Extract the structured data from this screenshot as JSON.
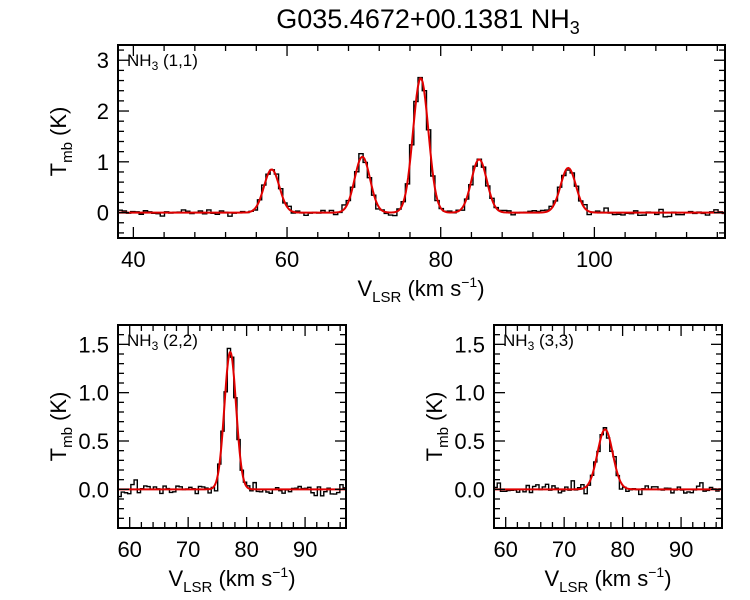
{
  "title": {
    "main": "G035.4672+00.1381 NH",
    "sub": "3"
  },
  "colors": {
    "spectrum": "#000000",
    "fit": "#e00000"
  },
  "chart_data": [
    {
      "type": "line",
      "panel_label": {
        "main": "NH",
        "sub": "3",
        "rest": " (1,1)"
      },
      "xlabel": {
        "main": "V",
        "sub": "LSR",
        "rest": " (km s",
        "sup": "−1",
        "close": ")"
      },
      "ylabel": {
        "main": "T",
        "sub": "mb",
        "rest": " (K)"
      },
      "xlim": [
        38,
        117
      ],
      "ylim": [
        -0.5,
        3.3
      ],
      "xticks": [
        40,
        60,
        80,
        100
      ],
      "yticks": [
        0,
        1,
        2,
        3
      ],
      "components": [
        {
          "center": 58.0,
          "amplitude": 0.85,
          "sigma": 1.0
        },
        {
          "center": 69.8,
          "amplitude": 1.1,
          "sigma": 1.0
        },
        {
          "center": 77.4,
          "amplitude": 2.65,
          "sigma": 1.0
        },
        {
          "center": 85.0,
          "amplitude": 1.05,
          "sigma": 1.0
        },
        {
          "center": 96.6,
          "amplitude": 0.88,
          "sigma": 1.0
        }
      ],
      "noise_rms": 0.05,
      "channel_width": 0.55,
      "series": [
        {
          "name": "spectrum",
          "style": "histogram"
        },
        {
          "name": "fit",
          "style": "smooth"
        }
      ]
    },
    {
      "type": "line",
      "panel_label": {
        "main": "NH",
        "sub": "3",
        "rest": " (2,2)"
      },
      "xlabel": {
        "main": "V",
        "sub": "LSR",
        "rest": " (km s",
        "sup": "−1",
        "close": ")"
      },
      "ylabel": {
        "main": "T",
        "sub": "mb",
        "rest": " (K)"
      },
      "xlim": [
        58,
        97
      ],
      "ylim": [
        -0.4,
        1.7
      ],
      "xticks": [
        60,
        70,
        80,
        90
      ],
      "yticks": [
        0.0,
        0.5,
        1.0,
        1.5
      ],
      "ytick_labels": [
        "0.0",
        "0.5",
        "1.0",
        "1.5"
      ],
      "components": [
        {
          "center": 77.2,
          "amplitude": 1.42,
          "sigma": 1.0
        }
      ],
      "noise_rms": 0.05,
      "channel_width": 0.55,
      "series": [
        {
          "name": "spectrum",
          "style": "histogram"
        },
        {
          "name": "fit",
          "style": "smooth"
        }
      ]
    },
    {
      "type": "line",
      "panel_label": {
        "main": "NH",
        "sub": "3",
        "rest": " (3,3)"
      },
      "xlabel": {
        "main": "V",
        "sub": "LSR",
        "rest": " (km s",
        "sup": "−1",
        "close": ")"
      },
      "ylabel": {
        "main": "T",
        "sub": "mb",
        "rest": " (K)"
      },
      "xlim": [
        58,
        97
      ],
      "ylim": [
        -0.4,
        1.7
      ],
      "xticks": [
        60,
        70,
        80,
        90
      ],
      "yticks": [
        0.0,
        0.5,
        1.0,
        1.5
      ],
      "ytick_labels": [
        "0.0",
        "0.5",
        "1.0",
        "1.5"
      ],
      "components": [
        {
          "center": 77.0,
          "amplitude": 0.62,
          "sigma": 1.3
        }
      ],
      "noise_rms": 0.045,
      "channel_width": 0.55,
      "series": [
        {
          "name": "spectrum",
          "style": "histogram"
        },
        {
          "name": "fit",
          "style": "smooth"
        }
      ]
    }
  ]
}
